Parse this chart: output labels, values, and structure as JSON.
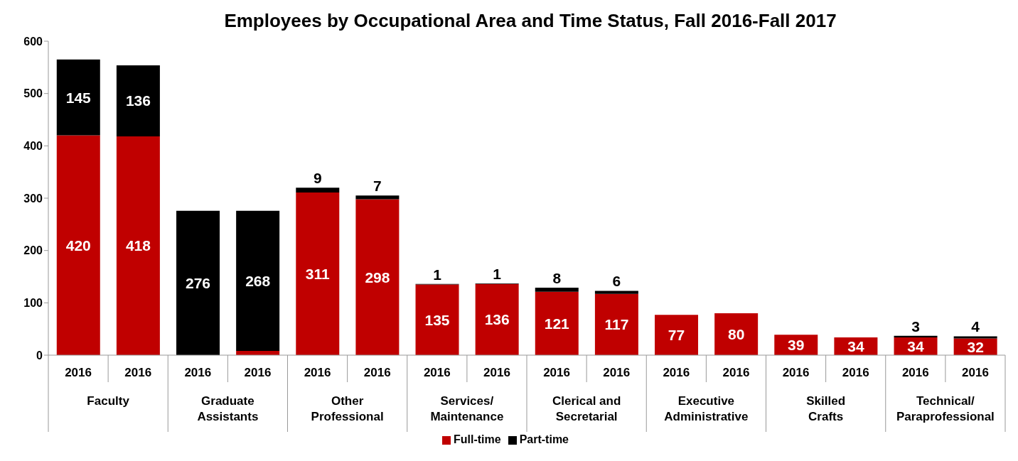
{
  "chart_data": {
    "type": "bar",
    "title": "Employees by Occupational Area and Time Status, Fall 2016-Fall 2017",
    "categories": [
      "2016",
      "2016",
      "2016",
      "2016",
      "2016",
      "2016",
      "2016",
      "2016",
      "2016",
      "2016",
      "2016",
      "2016",
      "2016",
      "2016",
      "2016",
      "2016"
    ],
    "annotations": [
      "Faculty",
      "Graduate Assistants",
      "Other Professional",
      "Services/ Maintenance",
      "Clerical and Secretarial",
      "Executive Administrative",
      "Skilled Crafts",
      "Technical/ Paraprofessional"
    ],
    "stacked": true,
    "series": [
      {
        "name": "Full-time",
        "color": "#c00000",
        "values": [
          420,
          418,
          0,
          8,
          311,
          298,
          135,
          136,
          121,
          117,
          77,
          80,
          39,
          34,
          34,
          32
        ],
        "value_labels": [
          "420",
          "418",
          null,
          null,
          "311",
          "298",
          "135",
          "136",
          "121",
          "117",
          "77",
          "80",
          "39",
          "34",
          "34",
          "32"
        ]
      },
      {
        "name": "Part-time",
        "color": "#000000",
        "values": [
          145,
          136,
          276,
          268,
          9,
          7,
          1,
          1,
          8,
          6,
          0,
          0,
          0,
          0,
          3,
          4
        ],
        "value_labels": [
          "145",
          "136",
          "276",
          "268",
          "9",
          "7",
          "1",
          "1",
          "8",
          "6",
          null,
          null,
          null,
          null,
          "3",
          "4"
        ]
      }
    ],
    "ylim": [
      0,
      600
    ],
    "yticks": [
      0,
      100,
      200,
      300,
      400,
      500,
      600
    ],
    "grid": false,
    "legend": "bottom"
  }
}
